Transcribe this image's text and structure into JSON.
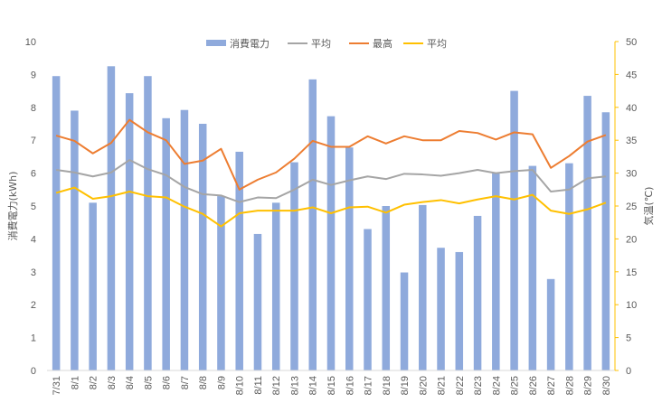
{
  "chart_data": {
    "type": "bar+line",
    "categories": [
      "7/31",
      "8/1",
      "8/2",
      "8/3",
      "8/4",
      "8/5",
      "8/6",
      "8/7",
      "8/8",
      "8/9",
      "8/10",
      "8/11",
      "8/12",
      "8/13",
      "8/14",
      "8/15",
      "8/16",
      "8/17",
      "8/18",
      "8/19",
      "8/20",
      "8/21",
      "8/22",
      "8/23",
      "8/24",
      "8/25",
      "8/26",
      "8/27",
      "8/28",
      "8/29",
      "8/30"
    ],
    "bar_series": {
      "name": "消費電力",
      "color": "#8faadc",
      "axis": "left",
      "values": [
        8.95,
        7.9,
        5.1,
        9.25,
        8.43,
        8.95,
        7.67,
        7.92,
        7.5,
        5.3,
        6.65,
        4.15,
        5.1,
        6.33,
        8.85,
        7.73,
        6.78,
        4.3,
        5.0,
        2.98,
        5.03,
        3.73,
        3.6,
        4.7,
        6.0,
        8.5,
        6.22,
        2.78,
        6.3,
        8.35,
        7.85
      ]
    },
    "line_series": [
      {
        "name": "平均",
        "color": "#a5a5a5",
        "axis": "right",
        "values": [
          30.5,
          30.1,
          29.5,
          30.1,
          32.0,
          30.6,
          29.7,
          27.9,
          26.8,
          26.6,
          25.6,
          26.3,
          26.2,
          27.5,
          29.0,
          28.2,
          28.9,
          29.5,
          29.1,
          29.9,
          29.8,
          29.6,
          30.0,
          30.5,
          30.0,
          30.3,
          30.5,
          27.2,
          27.5,
          29.2,
          29.5
        ]
      },
      {
        "name": "最高",
        "color": "#ed7d31",
        "axis": "right",
        "values": [
          35.7,
          34.9,
          33.0,
          34.6,
          38.1,
          36.2,
          35.0,
          31.4,
          31.9,
          33.7,
          27.5,
          29.0,
          30.1,
          32.2,
          34.9,
          34.0,
          34.0,
          35.6,
          34.5,
          35.6,
          35.0,
          35.0,
          36.4,
          36.1,
          35.1,
          36.2,
          35.9,
          30.8,
          32.6,
          34.8,
          35.8
        ]
      },
      {
        "name": "平均",
        "color": "#ffc000",
        "axis": "right",
        "values": [
          27.0,
          27.8,
          26.1,
          26.5,
          27.2,
          26.5,
          26.3,
          24.9,
          23.8,
          21.9,
          23.9,
          24.3,
          24.3,
          24.3,
          24.8,
          23.9,
          24.8,
          24.9,
          24.0,
          25.2,
          25.6,
          25.9,
          25.4,
          26.0,
          26.5,
          26.0,
          26.7,
          24.3,
          23.8,
          24.5,
          25.5
        ]
      }
    ],
    "y_left": {
      "label": "消費電力(kWh)",
      "min": 0,
      "max": 10,
      "ticks": [
        "0",
        "1",
        "2",
        "3",
        "4",
        "5",
        "6",
        "7",
        "8",
        "9",
        "10"
      ]
    },
    "y_right": {
      "label": "気温(℃)",
      "min": 0,
      "max": 50,
      "ticks": [
        "0",
        "5",
        "10",
        "15",
        "20",
        "25",
        "30",
        "35",
        "40",
        "45",
        "50"
      ]
    },
    "legend": {
      "placement": "top",
      "entries": [
        "消費電力",
        "平均",
        "最高",
        "平均"
      ]
    },
    "grid": false
  }
}
